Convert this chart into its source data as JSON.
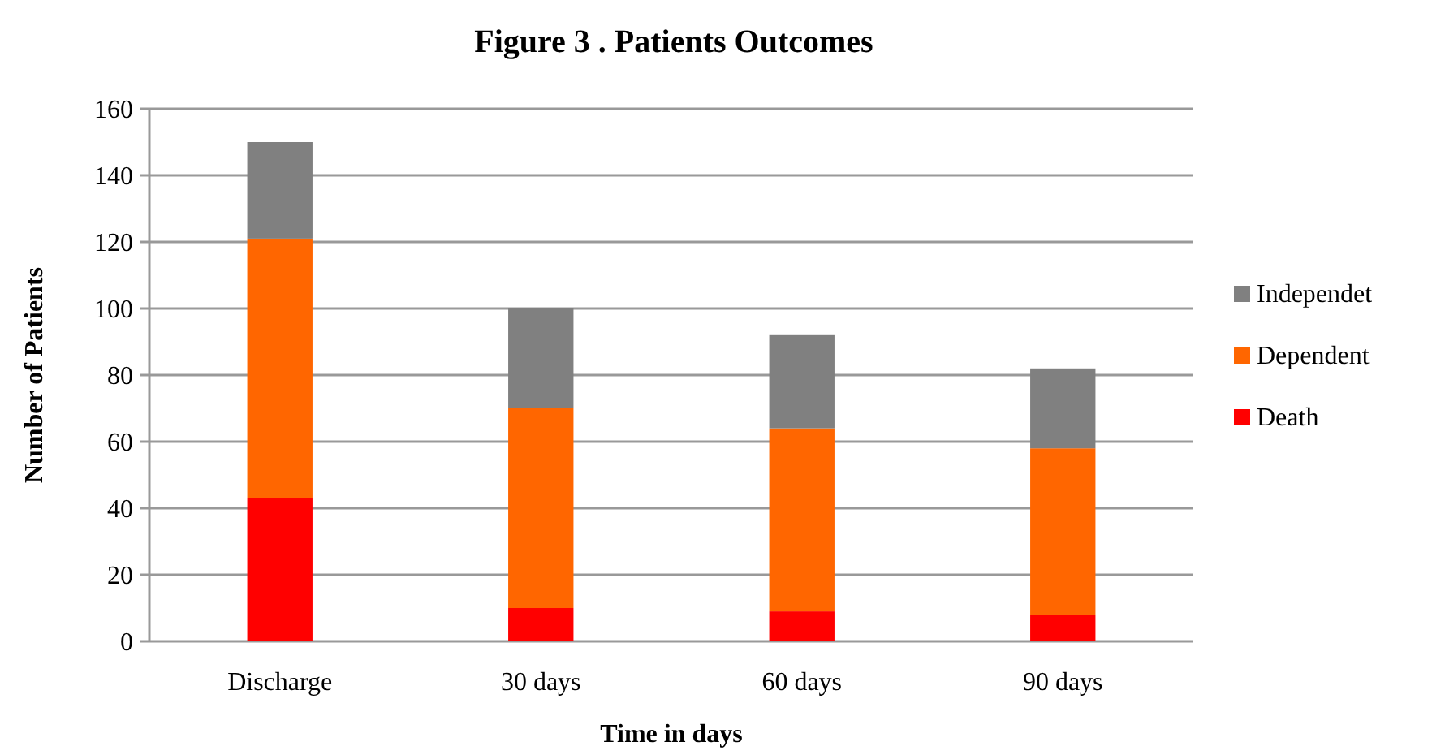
{
  "chart_data": {
    "type": "bar",
    "title": "Figure 3 . Patients Outcomes",
    "xlabel": "Time  in days",
    "ylabel": "Number  of Patients",
    "categories": [
      "Discharge",
      "30 days",
      "60 days",
      "90 days"
    ],
    "stacked": true,
    "series": [
      {
        "name": "Death",
        "color": "#ff0000",
        "values": [
          43,
          10,
          9,
          8
        ]
      },
      {
        "name": "Dependent",
        "color": "#ff6600",
        "values": [
          78,
          60,
          55,
          50
        ]
      },
      {
        "name": "Independet",
        "color": "#808080",
        "values": [
          29,
          30,
          28,
          24
        ]
      }
    ],
    "ylim": [
      0,
      160
    ],
    "yticks": [
      0,
      20,
      40,
      60,
      80,
      100,
      120,
      140,
      160
    ],
    "grid": "y",
    "legend": "right"
  }
}
